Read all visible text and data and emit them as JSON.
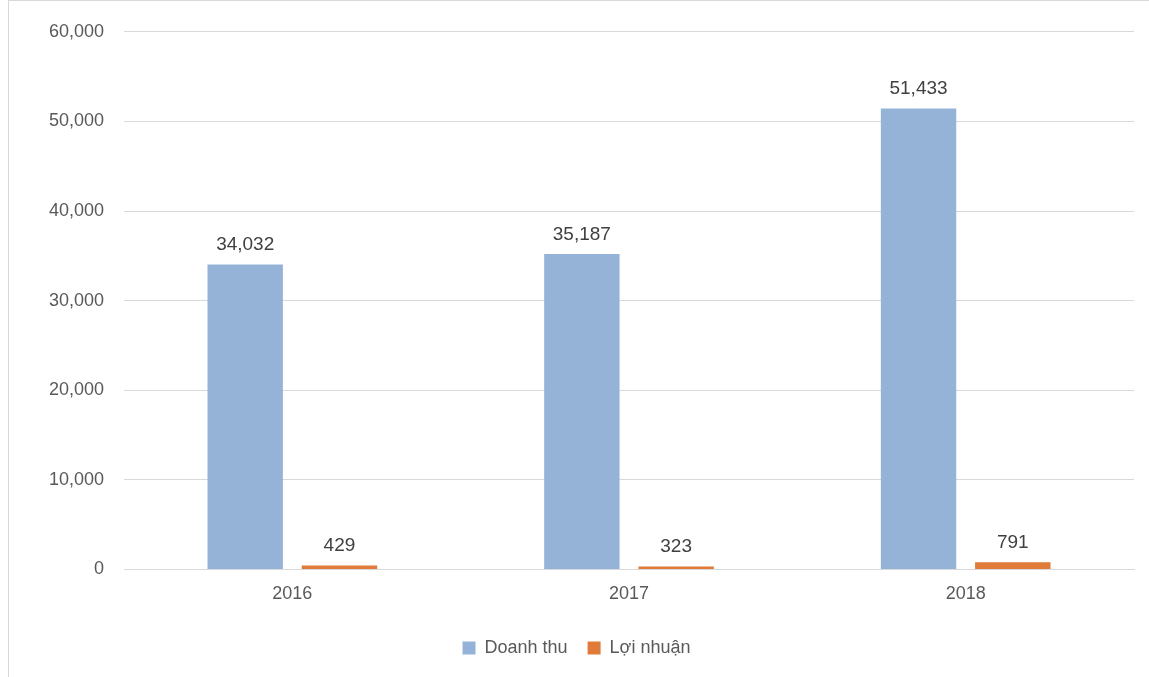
{
  "chart_data": {
    "type": "bar",
    "categories": [
      "2016",
      "2017",
      "2018"
    ],
    "series": [
      {
        "name": "Doanh thu",
        "color": "#95b3d7",
        "values": [
          34032,
          35187,
          51433
        ],
        "value_labels": [
          "34,032",
          "35,187",
          "51,433"
        ]
      },
      {
        "name": "Lợi nhuận",
        "color": "#e07b39",
        "values": [
          429,
          323,
          791
        ],
        "value_labels": [
          "429",
          "323",
          "791"
        ]
      }
    ],
    "ylim": [
      0,
      60000
    ],
    "yticks": [
      {
        "value": 0,
        "label": "0"
      },
      {
        "value": 10000,
        "label": "10,000"
      },
      {
        "value": 20000,
        "label": "20,000"
      },
      {
        "value": 30000,
        "label": "30,000"
      },
      {
        "value": 40000,
        "label": "40,000"
      },
      {
        "value": 50000,
        "label": "50,000"
      },
      {
        "value": 60000,
        "label": "60,000"
      }
    ],
    "grid": "y",
    "legend": "bottom"
  }
}
